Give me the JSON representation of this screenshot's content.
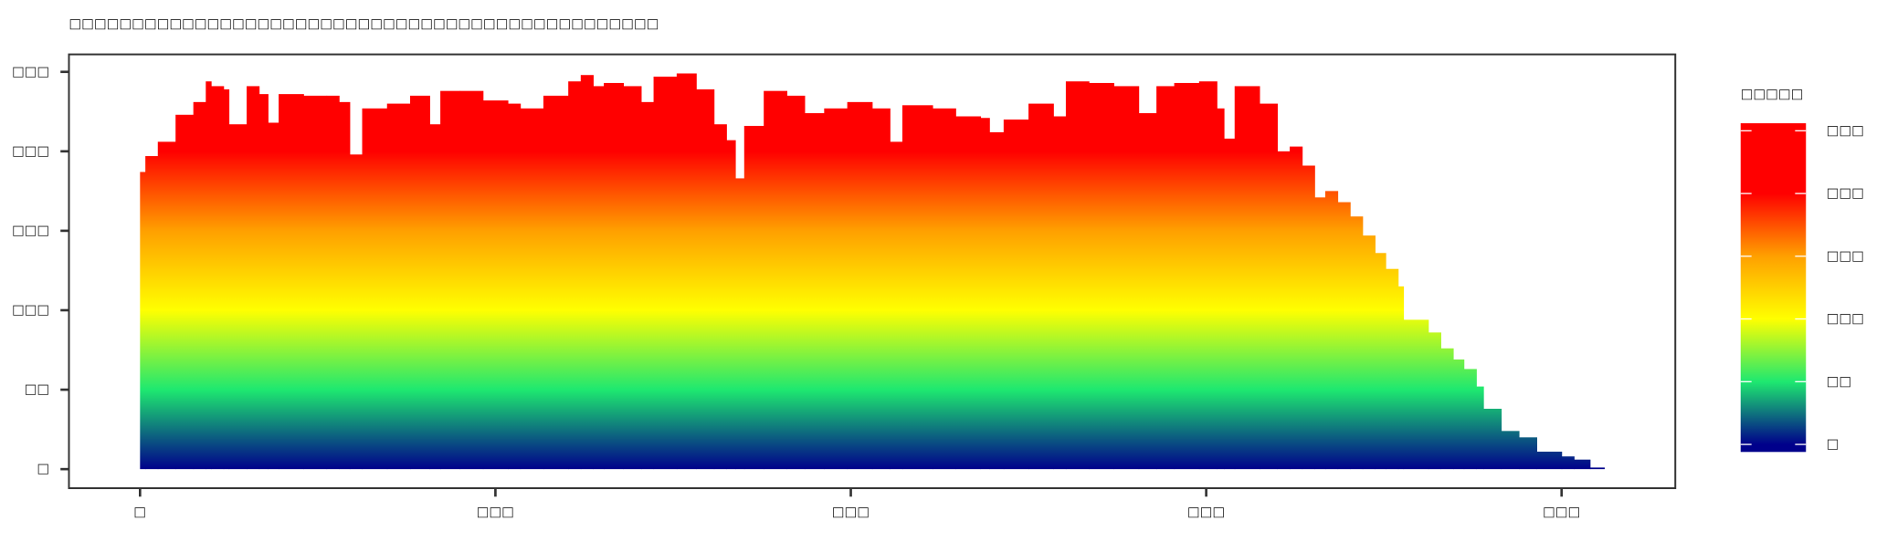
{
  "chart_data": {
    "type": "histogram",
    "title": "□□□□□□□□□□□□□□□□□□□□□□□□□□□□□□□□□□□□□□□□□□□□□□□",
    "bins": [
      0,
      3,
      10,
      20,
      30,
      37,
      40,
      47,
      50,
      60,
      67,
      72,
      78,
      92,
      105,
      112,
      118,
      125,
      139,
      152,
      163,
      169,
      180,
      193,
      207,
      214,
      227,
      241,
      248,
      255,
      261,
      272,
      282,
      289,
      302,
      313,
      323,
      330,
      335,
      340,
      351,
      364,
      374,
      385,
      398,
      412,
      422,
      429,
      446,
      459,
      473,
      478,
      486,
      500,
      514,
      521,
      534,
      548,
      562,
      572,
      582,
      596,
      606,
      610,
      616,
      630,
      640,
      647,
      654,
      661,
      667,
      674,
      681,
      688,
      695,
      701,
      708,
      711,
      725,
      732,
      739,
      745,
      752,
      756,
      766,
      776,
      786,
      800,
      807,
      816,
      824
    ],
    "values": [
      187,
      197,
      206,
      223,
      231,
      244,
      241,
      239,
      217,
      241,
      236,
      218,
      236,
      235,
      235,
      231,
      198,
      227,
      230,
      235,
      217,
      238,
      238,
      232,
      230,
      227,
      235,
      244,
      248,
      241,
      243,
      241,
      231,
      247,
      249,
      239,
      217,
      207,
      183,
      216,
      238,
      235,
      224,
      227,
      231,
      227,
      206,
      229,
      227,
      222,
      221,
      212,
      220,
      230,
      222,
      244,
      243,
      241,
      224,
      241,
      243,
      244,
      227,
      208,
      241,
      230,
      200,
      203,
      191,
      171,
      175,
      168,
      159,
      147,
      136,
      126,
      115,
      94,
      86,
      76,
      69,
      63,
      52,
      38,
      24,
      20,
      11,
      8,
      6,
      1
    ],
    "xlim": [
      -40,
      864
    ],
    "xticks": [
      {
        "value": 0,
        "label": "□"
      },
      {
        "value": 200,
        "label": "□□□"
      },
      {
        "value": 400,
        "label": "□□□"
      },
      {
        "value": 600,
        "label": "□□□"
      },
      {
        "value": 800,
        "label": "□□□"
      }
    ],
    "ylim": [
      -12,
      261
    ],
    "yticks": [
      {
        "value": 0,
        "label": "□"
      },
      {
        "value": 50,
        "label": "□□"
      },
      {
        "value": 100,
        "label": "□□□"
      },
      {
        "value": 150,
        "label": "□□□"
      },
      {
        "value": 200,
        "label": "□□□"
      },
      {
        "value": 250,
        "label": "□□□"
      }
    ],
    "colormap": {
      "stops": [
        0,
        50,
        100,
        150,
        200
      ],
      "colors": [
        "#00008b",
        "#1ee870",
        "#ffff00",
        "#ffa000",
        "#ff0000"
      ]
    },
    "colorbar": {
      "title": "□□□□□",
      "lim": [
        -6,
        256
      ],
      "ticks": [
        {
          "value": 0,
          "label": "□"
        },
        {
          "value": 50,
          "label": "□□"
        },
        {
          "value": 100,
          "label": "□□□"
        },
        {
          "value": 150,
          "label": "□□□"
        },
        {
          "value": 200,
          "label": "□□□"
        },
        {
          "value": 250,
          "label": "□□□"
        }
      ]
    }
  }
}
